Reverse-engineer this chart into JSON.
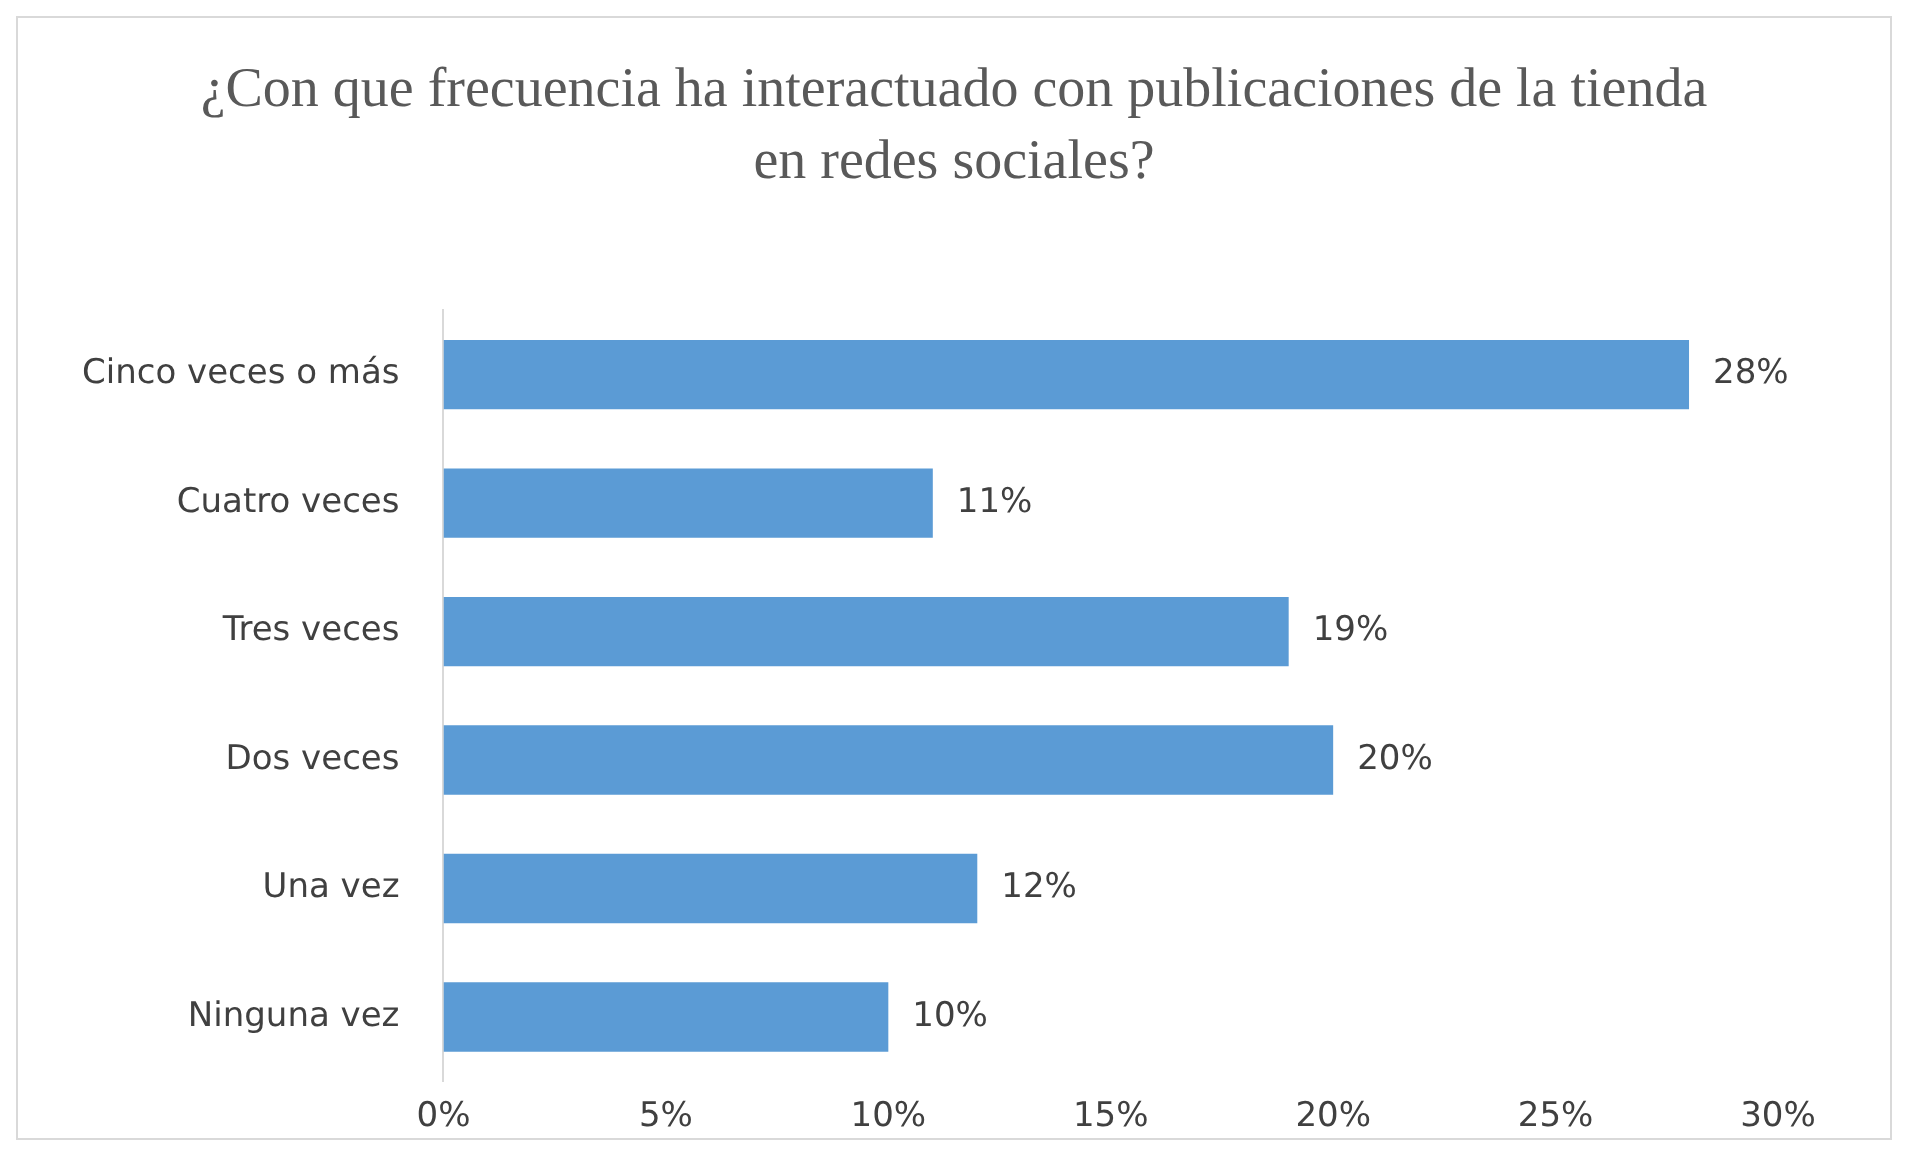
{
  "chart_data": {
    "type": "bar",
    "orientation": "horizontal",
    "title": "¿Con que frecuencia ha interactuado con publicaciones de la tienda en redes sociales?",
    "categories": [
      "Cinco veces o más",
      "Cuatro veces",
      "Tres veces",
      "Dos veces",
      "Una vez",
      "Ninguna vez"
    ],
    "values": [
      28,
      11,
      19,
      20,
      12,
      10
    ],
    "value_labels": [
      "28%",
      "11%",
      "19%",
      "20%",
      "12%",
      "10%"
    ],
    "color": "#5b9bd5",
    "xlim": [
      0,
      30
    ],
    "xticks": [
      {
        "value": 0,
        "label": "0%"
      },
      {
        "value": 5,
        "label": "5%"
      },
      {
        "value": 10,
        "label": "10%"
      },
      {
        "value": 15,
        "label": "15%"
      },
      {
        "value": 20,
        "label": "20%"
      },
      {
        "value": 25,
        "label": "25%"
      },
      {
        "value": 30,
        "label": "30%"
      }
    ],
    "grid": false,
    "legend": false
  }
}
